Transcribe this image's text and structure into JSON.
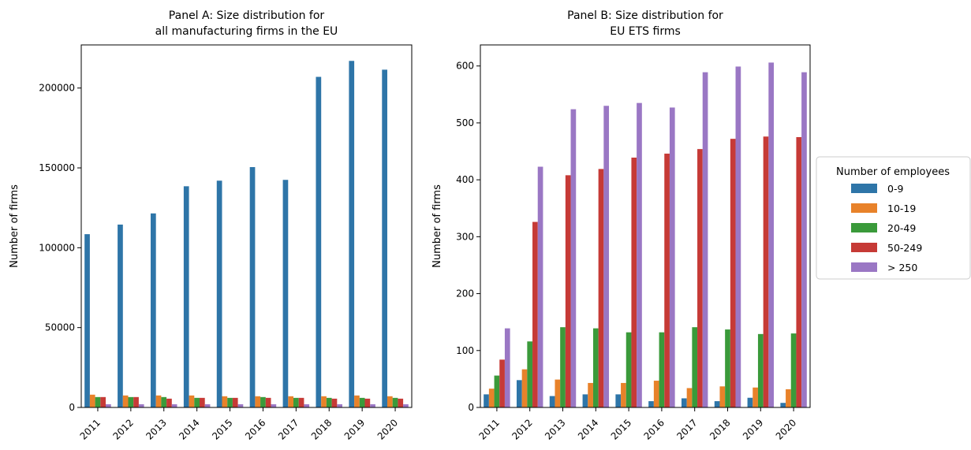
{
  "chart_data": [
    {
      "type": "bar",
      "title": [
        "Panel A: Size distribution for",
        "all manufacturing firms in the EU"
      ],
      "ylabel": "Number of firms",
      "xlabel": "",
      "ylim": [
        0,
        227000
      ],
      "yticks": [
        0,
        50000,
        100000,
        150000,
        200000
      ],
      "ytick_labels": [
        "0",
        "50000",
        "100000",
        "150000",
        "200000"
      ],
      "categories": [
        "2011",
        "2012",
        "2013",
        "2014",
        "2015",
        "2016",
        "2017",
        "2018",
        "2019",
        "2020"
      ],
      "series": [
        {
          "name": "0-9",
          "values": [
            108500,
            114500,
            121500,
            138500,
            142000,
            150500,
            142500,
            207000,
            217000,
            211500
          ]
        },
        {
          "name": "10-19",
          "values": [
            8000,
            7500,
            7500,
            7500,
            7000,
            7000,
            7000,
            7000,
            7500,
            7000
          ]
        },
        {
          "name": "20-49",
          "values": [
            6500,
            6500,
            6500,
            6000,
            6000,
            6500,
            6000,
            6000,
            6000,
            6000
          ]
        },
        {
          "name": "50-249",
          "values": [
            6500,
            6500,
            5500,
            6000,
            6000,
            6000,
            6000,
            5500,
            5500,
            5500
          ]
        },
        {
          "name": "> 250",
          "values": [
            2000,
            2000,
            2000,
            2000,
            2000,
            2000,
            2000,
            2000,
            2000,
            2000
          ]
        }
      ],
      "grid": false,
      "legend": "none"
    },
    {
      "type": "bar",
      "title": [
        "Panel B: Size distribution for",
        "EU ETS firms"
      ],
      "ylabel": "Number of firms",
      "xlabel": "",
      "ylim": [
        0,
        637
      ],
      "yticks": [
        0,
        100,
        200,
        300,
        400,
        500,
        600
      ],
      "ytick_labels": [
        "0",
        "100",
        "200",
        "300",
        "400",
        "500",
        "600"
      ],
      "categories": [
        "2011",
        "2012",
        "2013",
        "2014",
        "2015",
        "2016",
        "2017",
        "2018",
        "2019",
        "2020"
      ],
      "series": [
        {
          "name": "0-9",
          "values": [
            23,
            48,
            20,
            23,
            23,
            11,
            16,
            11,
            17,
            8
          ]
        },
        {
          "name": "10-19",
          "values": [
            33,
            67,
            49,
            43,
            43,
            47,
            34,
            37,
            35,
            32
          ]
        },
        {
          "name": "20-49",
          "values": [
            56,
            116,
            141,
            139,
            132,
            132,
            141,
            137,
            129,
            130
          ]
        },
        {
          "name": "50-249",
          "values": [
            84,
            326,
            408,
            419,
            439,
            446,
            454,
            472,
            476,
            475
          ]
        },
        {
          "name": "> 250",
          "values": [
            139,
            423,
            524,
            530,
            535,
            527,
            589,
            599,
            606,
            589
          ]
        }
      ],
      "grid": false,
      "legend": "outside-right"
    }
  ],
  "legend": {
    "title": "Number of employees",
    "items": [
      "0-9",
      "10-19",
      "20-49",
      "50-249",
      "> 250"
    ]
  },
  "colors": {
    "0-9": "#2e75a8",
    "10-19": "#e8822a",
    "20-49": "#3a9a3a",
    "50-249": "#c63a36",
    "> 250": "#9a77c4"
  }
}
